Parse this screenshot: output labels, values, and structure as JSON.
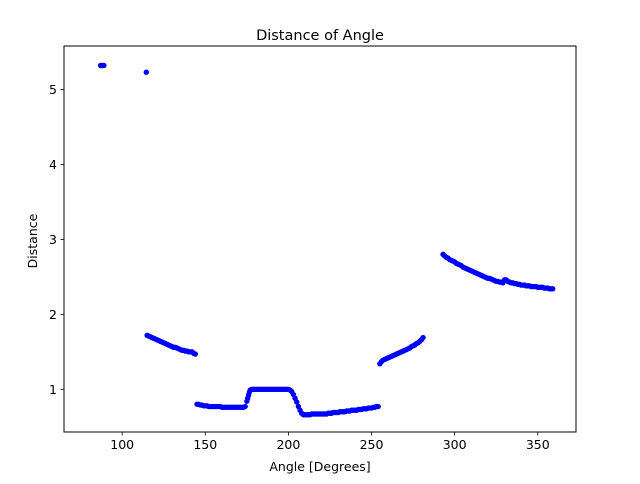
{
  "colors": {
    "series": "#0000ff",
    "axes": "#000000",
    "background": "#ffffff"
  },
  "chart_data": {
    "type": "scatter",
    "title": "Distance of Angle",
    "xlabel": "Angle [Degrees]",
    "ylabel": "Distance",
    "xlim": [
      65,
      373
    ],
    "ylim": [
      0.43,
      5.58
    ],
    "xticks": [
      100,
      150,
      200,
      250,
      300,
      350
    ],
    "yticks": [
      1,
      2,
      3,
      4,
      5
    ],
    "grid": false,
    "legend": "none",
    "series": [
      {
        "color": "#0000ff",
        "x": [
          87,
          88,
          89,
          114.5,
          115,
          116,
          117,
          118,
          119,
          120,
          121,
          122,
          123,
          124,
          125,
          126,
          127,
          128,
          129,
          130,
          131,
          132,
          133,
          134,
          135,
          136,
          137,
          138,
          139,
          140,
          141,
          142,
          143,
          144,
          145,
          146,
          147,
          148,
          149,
          150,
          151,
          152,
          153,
          154,
          155,
          156,
          157,
          158,
          159,
          160,
          161,
          162,
          163,
          164,
          165,
          166,
          167,
          168,
          169,
          170,
          171,
          172,
          173,
          174,
          175,
          175.5,
          176,
          176.5,
          177,
          178,
          179,
          180,
          181,
          182,
          183,
          184,
          185,
          186,
          187,
          188,
          189,
          190,
          191,
          192,
          193,
          194,
          195,
          196,
          197,
          198,
          199,
          200,
          201,
          202,
          203,
          204,
          205,
          206,
          207,
          208,
          209,
          210,
          211,
          212,
          213,
          214,
          215,
          216,
          217,
          218,
          219,
          220,
          221,
          222,
          223,
          224,
          225,
          226,
          227,
          228,
          229,
          230,
          231,
          232,
          233,
          234,
          235,
          236,
          237,
          238,
          239,
          240,
          241,
          242,
          243,
          244,
          245,
          246,
          247,
          248,
          249,
          250,
          251,
          252,
          253,
          254,
          255,
          256,
          257,
          258,
          259,
          260,
          261,
          262,
          263,
          264,
          265,
          266,
          267,
          268,
          269,
          270,
          271,
          272,
          273,
          274,
          275,
          276,
          277,
          278,
          279,
          280,
          281,
          293,
          294,
          295,
          296,
          297,
          298,
          299,
          300,
          301,
          302,
          303,
          304,
          305,
          306,
          307,
          308,
          309,
          310,
          311,
          312,
          313,
          314,
          315,
          316,
          317,
          318,
          319,
          320,
          321,
          322,
          323,
          324,
          325,
          326,
          327,
          328,
          329,
          330,
          331,
          332,
          333,
          334,
          335,
          336,
          337,
          338,
          339,
          340,
          341,
          342,
          343,
          344,
          345,
          346,
          347,
          348,
          349,
          350,
          351,
          352,
          353,
          354,
          355,
          356,
          357,
          358,
          359
        ],
        "y": [
          5.32,
          5.32,
          5.32,
          5.23,
          1.72,
          1.71,
          1.7,
          1.69,
          1.68,
          1.67,
          1.66,
          1.65,
          1.64,
          1.63,
          1.62,
          1.61,
          1.6,
          1.59,
          1.58,
          1.57,
          1.56,
          1.56,
          1.55,
          1.54,
          1.53,
          1.52,
          1.52,
          1.51,
          1.51,
          1.5,
          1.5,
          1.5,
          1.48,
          1.47,
          0.8,
          0.8,
          0.79,
          0.79,
          0.78,
          0.78,
          0.78,
          0.77,
          0.77,
          0.77,
          0.77,
          0.77,
          0.77,
          0.77,
          0.77,
          0.76,
          0.76,
          0.76,
          0.76,
          0.76,
          0.76,
          0.76,
          0.76,
          0.76,
          0.76,
          0.76,
          0.76,
          0.76,
          0.76,
          0.77,
          0.84,
          0.88,
          0.92,
          0.96,
          0.99,
          1.0,
          1.0,
          1.0,
          1.0,
          1.0,
          1.0,
          1.0,
          1.0,
          1.0,
          1.0,
          1.0,
          1.0,
          1.0,
          1.0,
          1.0,
          1.0,
          1.0,
          1.0,
          1.0,
          1.0,
          1.0,
          1.0,
          1.0,
          0.99,
          0.97,
          0.93,
          0.88,
          0.83,
          0.77,
          0.72,
          0.68,
          0.66,
          0.66,
          0.66,
          0.66,
          0.66,
          0.67,
          0.67,
          0.67,
          0.67,
          0.67,
          0.67,
          0.67,
          0.67,
          0.67,
          0.67,
          0.68,
          0.68,
          0.68,
          0.69,
          0.69,
          0.69,
          0.69,
          0.7,
          0.7,
          0.7,
          0.7,
          0.71,
          0.71,
          0.71,
          0.72,
          0.72,
          0.72,
          0.72,
          0.73,
          0.73,
          0.73,
          0.74,
          0.74,
          0.74,
          0.75,
          0.75,
          0.75,
          0.76,
          0.76,
          0.77,
          0.77,
          1.34,
          1.37,
          1.39,
          1.4,
          1.41,
          1.42,
          1.43,
          1.44,
          1.45,
          1.46,
          1.47,
          1.48,
          1.49,
          1.5,
          1.51,
          1.52,
          1.53,
          1.54,
          1.55,
          1.57,
          1.58,
          1.59,
          1.61,
          1.62,
          1.64,
          1.66,
          1.69,
          2.8,
          2.78,
          2.76,
          2.75,
          2.73,
          2.72,
          2.71,
          2.7,
          2.68,
          2.67,
          2.66,
          2.65,
          2.63,
          2.62,
          2.61,
          2.6,
          2.59,
          2.58,
          2.57,
          2.56,
          2.55,
          2.54,
          2.53,
          2.52,
          2.51,
          2.5,
          2.49,
          2.48,
          2.48,
          2.47,
          2.46,
          2.45,
          2.44,
          2.44,
          2.43,
          2.43,
          2.42,
          2.46,
          2.46,
          2.44,
          2.43,
          2.42,
          2.42,
          2.41,
          2.41,
          2.4,
          2.4,
          2.39,
          2.39,
          2.39,
          2.38,
          2.38,
          2.38,
          2.37,
          2.37,
          2.37,
          2.37,
          2.36,
          2.36,
          2.36,
          2.36,
          2.35,
          2.35,
          2.35,
          2.34,
          2.34,
          2.34
        ]
      }
    ]
  }
}
